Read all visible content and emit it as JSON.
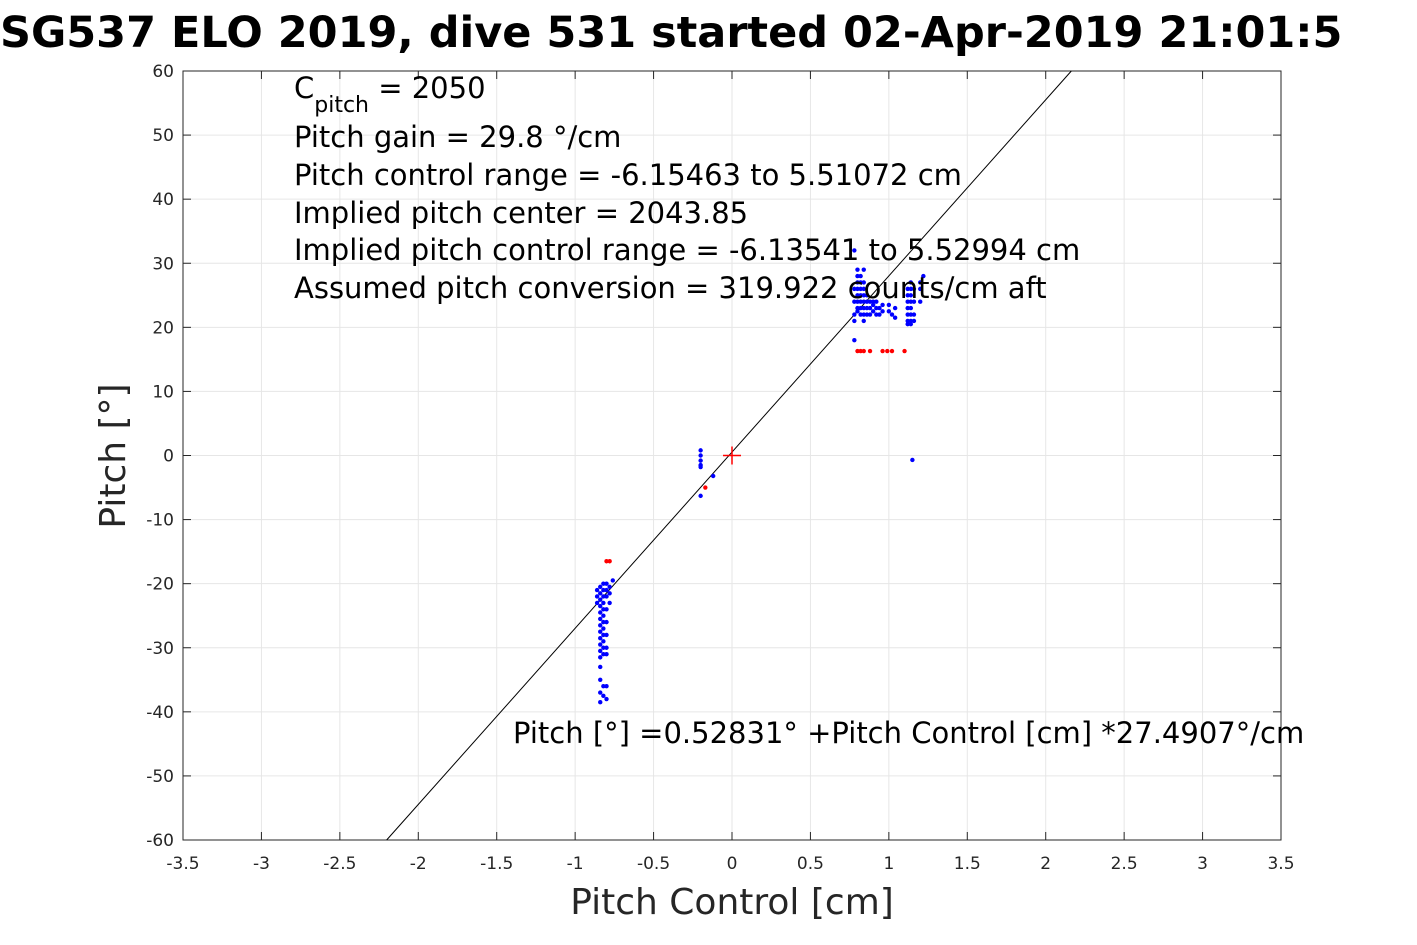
{
  "chart_data": {
    "type": "scatter",
    "title": "SG537 ELO 2019, dive 531 started 02-Apr-2019 21:01:5",
    "xlabel": "Pitch Control [cm]",
    "ylabel": "Pitch [°]",
    "xlim": [
      -3.5,
      3.5
    ],
    "ylim": [
      -60,
      60
    ],
    "xticks": [
      -3.5,
      -3,
      -2.5,
      -2,
      -1.5,
      -1,
      -0.5,
      0,
      0.5,
      1,
      1.5,
      2,
      2.5,
      3,
      3.5
    ],
    "yticks": [
      -60,
      -50,
      -40,
      -30,
      -20,
      -10,
      0,
      10,
      20,
      30,
      40,
      50,
      60
    ],
    "xtick_labels": [
      "-3.5",
      "-3",
      "-2.5",
      "-2",
      "-1.5",
      "-1",
      "-0.5",
      "0",
      "0.5",
      "1",
      "1.5",
      "2",
      "2.5",
      "3",
      "3.5"
    ],
    "ytick_labels": [
      "-60",
      "-50",
      "-40",
      "-30",
      "-20",
      "-10",
      "0",
      "10",
      "20",
      "30",
      "40",
      "50",
      "60"
    ],
    "grid": true,
    "annotations": {
      "c_pitch_symbol": "C",
      "c_pitch_subscript": "pitch",
      "c_pitch_value": " = 2050",
      "lines": [
        "Pitch gain = 29.8 °/cm",
        "Pitch control range = -6.15463 to 5.51072 cm",
        "Implied pitch center = 2043.85",
        "Implied pitch control range = -6.13541 to 5.52994 cm",
        "Assumed pitch conversion = 319.922 counts/cm aft"
      ],
      "fit_equation": "Pitch [°] =0.52831° +Pitch Control [cm] *27.4907°/cm"
    },
    "fit_line": {
      "intercept": 0.52831,
      "slope": 27.4907,
      "color": "#000000"
    },
    "center_marker": {
      "x": 0,
      "y": 0,
      "color": "#ff0000",
      "symbol": "+"
    },
    "series": [
      {
        "color": "#0000ff",
        "points": [
          [
            -0.84,
            -20.5
          ],
          [
            -0.84,
            -21.5
          ],
          [
            -0.84,
            -22.5
          ],
          [
            -0.84,
            -23.5
          ],
          [
            -0.84,
            -24.5
          ],
          [
            -0.84,
            -25.5
          ],
          [
            -0.84,
            -26.5
          ],
          [
            -0.84,
            -27.5
          ],
          [
            -0.84,
            -28.5
          ],
          [
            -0.84,
            -29.5
          ],
          [
            -0.84,
            -30.5
          ],
          [
            -0.84,
            -31.5
          ],
          [
            -0.84,
            -33
          ],
          [
            -0.84,
            -35
          ],
          [
            -0.84,
            -37
          ],
          [
            -0.84,
            -38.5
          ],
          [
            -0.82,
            -20
          ],
          [
            -0.82,
            -21
          ],
          [
            -0.82,
            -22
          ],
          [
            -0.82,
            -23
          ],
          [
            -0.82,
            -24
          ],
          [
            -0.82,
            -25
          ],
          [
            -0.82,
            -26
          ],
          [
            -0.82,
            -27
          ],
          [
            -0.82,
            -28
          ],
          [
            -0.82,
            -29
          ],
          [
            -0.82,
            -30
          ],
          [
            -0.82,
            -31
          ],
          [
            -0.82,
            -36
          ],
          [
            -0.82,
            -37.5
          ],
          [
            -0.8,
            -20
          ],
          [
            -0.8,
            -21
          ],
          [
            -0.8,
            -22
          ],
          [
            -0.8,
            -24
          ],
          [
            -0.8,
            -26
          ],
          [
            -0.8,
            -28
          ],
          [
            -0.8,
            -30
          ],
          [
            -0.8,
            -31
          ],
          [
            -0.8,
            -36
          ],
          [
            -0.8,
            -38
          ],
          [
            -0.78,
            -20.5
          ],
          [
            -0.78,
            -21.5
          ],
          [
            -0.78,
            -23
          ],
          [
            -0.76,
            -19.5
          ],
          [
            -0.86,
            -21
          ],
          [
            -0.86,
            -22
          ],
          [
            -0.86,
            -23
          ],
          [
            -0.2,
            0.8
          ],
          [
            -0.2,
            0
          ],
          [
            -0.2,
            -0.8
          ],
          [
            -0.2,
            -1.5
          ],
          [
            -0.2,
            -1.8
          ],
          [
            -0.2,
            -6.3
          ],
          [
            -0.12,
            -3.2
          ],
          [
            0.78,
            32
          ],
          [
            0.78,
            26
          ],
          [
            0.78,
            24
          ],
          [
            0.78,
            22
          ],
          [
            0.78,
            18
          ],
          [
            0.78,
            21
          ],
          [
            0.8,
            29
          ],
          [
            0.8,
            28
          ],
          [
            0.8,
            27
          ],
          [
            0.8,
            26
          ],
          [
            0.8,
            25
          ],
          [
            0.8,
            24
          ],
          [
            0.8,
            23
          ],
          [
            0.8,
            22.5
          ],
          [
            0.82,
            28
          ],
          [
            0.82,
            27
          ],
          [
            0.82,
            26
          ],
          [
            0.82,
            25
          ],
          [
            0.82,
            24
          ],
          [
            0.82,
            23
          ],
          [
            0.82,
            22
          ],
          [
            0.84,
            29
          ],
          [
            0.84,
            27
          ],
          [
            0.84,
            26
          ],
          [
            0.84,
            25
          ],
          [
            0.84,
            24
          ],
          [
            0.84,
            23
          ],
          [
            0.84,
            22
          ],
          [
            0.84,
            21
          ],
          [
            0.86,
            25
          ],
          [
            0.86,
            24
          ],
          [
            0.86,
            23
          ],
          [
            0.86,
            22
          ],
          [
            0.88,
            24
          ],
          [
            0.88,
            23
          ],
          [
            0.88,
            22
          ],
          [
            0.9,
            24
          ],
          [
            0.9,
            23.5
          ],
          [
            0.9,
            22.5
          ],
          [
            0.92,
            24
          ],
          [
            0.92,
            23
          ],
          [
            0.92,
            22
          ],
          [
            0.94,
            23
          ],
          [
            0.94,
            22
          ],
          [
            0.96,
            23.5
          ],
          [
            0.96,
            22.5
          ],
          [
            1.0,
            23.5
          ],
          [
            1.0,
            22.5
          ],
          [
            1.02,
            22
          ],
          [
            1.04,
            23
          ],
          [
            1.04,
            21.5
          ],
          [
            1.12,
            26
          ],
          [
            1.12,
            25
          ],
          [
            1.12,
            24
          ],
          [
            1.12,
            23
          ],
          [
            1.12,
            22
          ],
          [
            1.12,
            21
          ],
          [
            1.12,
            20.5
          ],
          [
            1.14,
            27
          ],
          [
            1.14,
            26
          ],
          [
            1.14,
            25
          ],
          [
            1.14,
            24
          ],
          [
            1.14,
            23
          ],
          [
            1.14,
            22
          ],
          [
            1.14,
            21
          ],
          [
            1.14,
            20.5
          ],
          [
            1.16,
            26
          ],
          [
            1.16,
            24
          ],
          [
            1.16,
            22
          ],
          [
            1.16,
            21
          ],
          [
            1.2,
            27
          ],
          [
            1.2,
            26
          ],
          [
            1.2,
            24
          ],
          [
            1.22,
            28
          ],
          [
            1.15,
            -0.7
          ]
        ]
      },
      {
        "color": "#ff0000",
        "points": [
          [
            -0.78,
            -16.5
          ],
          [
            -0.8,
            -16.5
          ],
          [
            -0.17,
            -5
          ],
          [
            0.8,
            16.3
          ],
          [
            0.82,
            16.3
          ],
          [
            0.84,
            16.3
          ],
          [
            0.88,
            16.3
          ],
          [
            0.96,
            16.3
          ],
          [
            0.99,
            16.3
          ],
          [
            1.02,
            16.3
          ],
          [
            1.1,
            16.3
          ]
        ]
      }
    ]
  }
}
